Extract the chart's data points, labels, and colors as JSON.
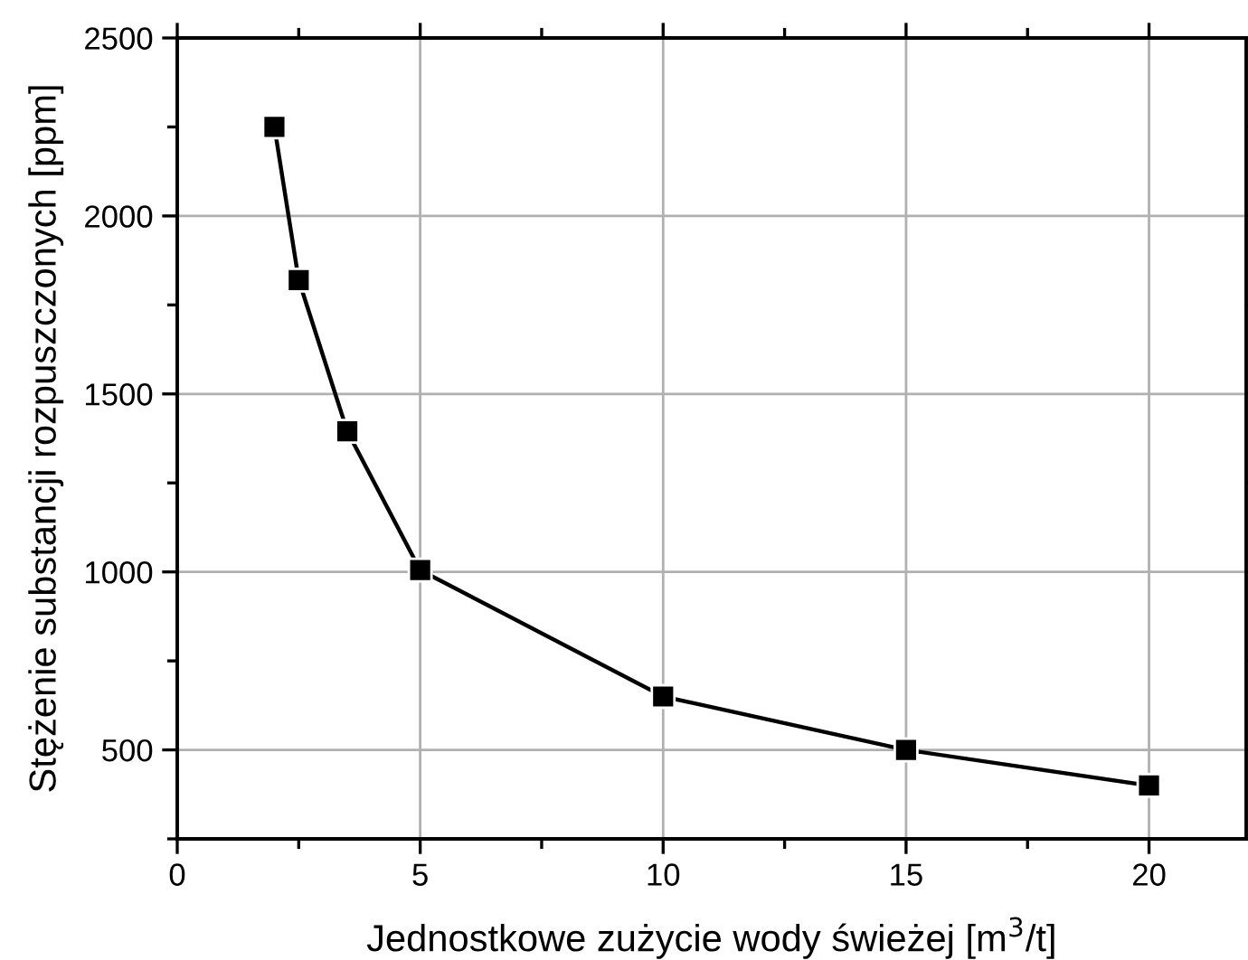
{
  "chart_data": {
    "type": "line",
    "xlabel": "Jednostkowe zużycie wody świeżej [m$^{3}$/t]",
    "ylabel": "Stężenie substancji rozpuszczonych [ppm]",
    "x": [
      2,
      2.5,
      3.5,
      5,
      10,
      15,
      20
    ],
    "series": [
      {
        "color": "#000000",
        "values": [
          2250,
          1820,
          1395,
          1005,
          650,
          500,
          400
        ]
      }
    ],
    "xlim": [
      0,
      22
    ],
    "xticks": [
      0,
      5,
      10,
      15,
      20
    ],
    "ylim": [
      250,
      2500
    ],
    "yticks": [
      500,
      1000,
      1500,
      2000,
      2500
    ],
    "grid": true,
    "marker": "square",
    "line_style": "solid"
  }
}
